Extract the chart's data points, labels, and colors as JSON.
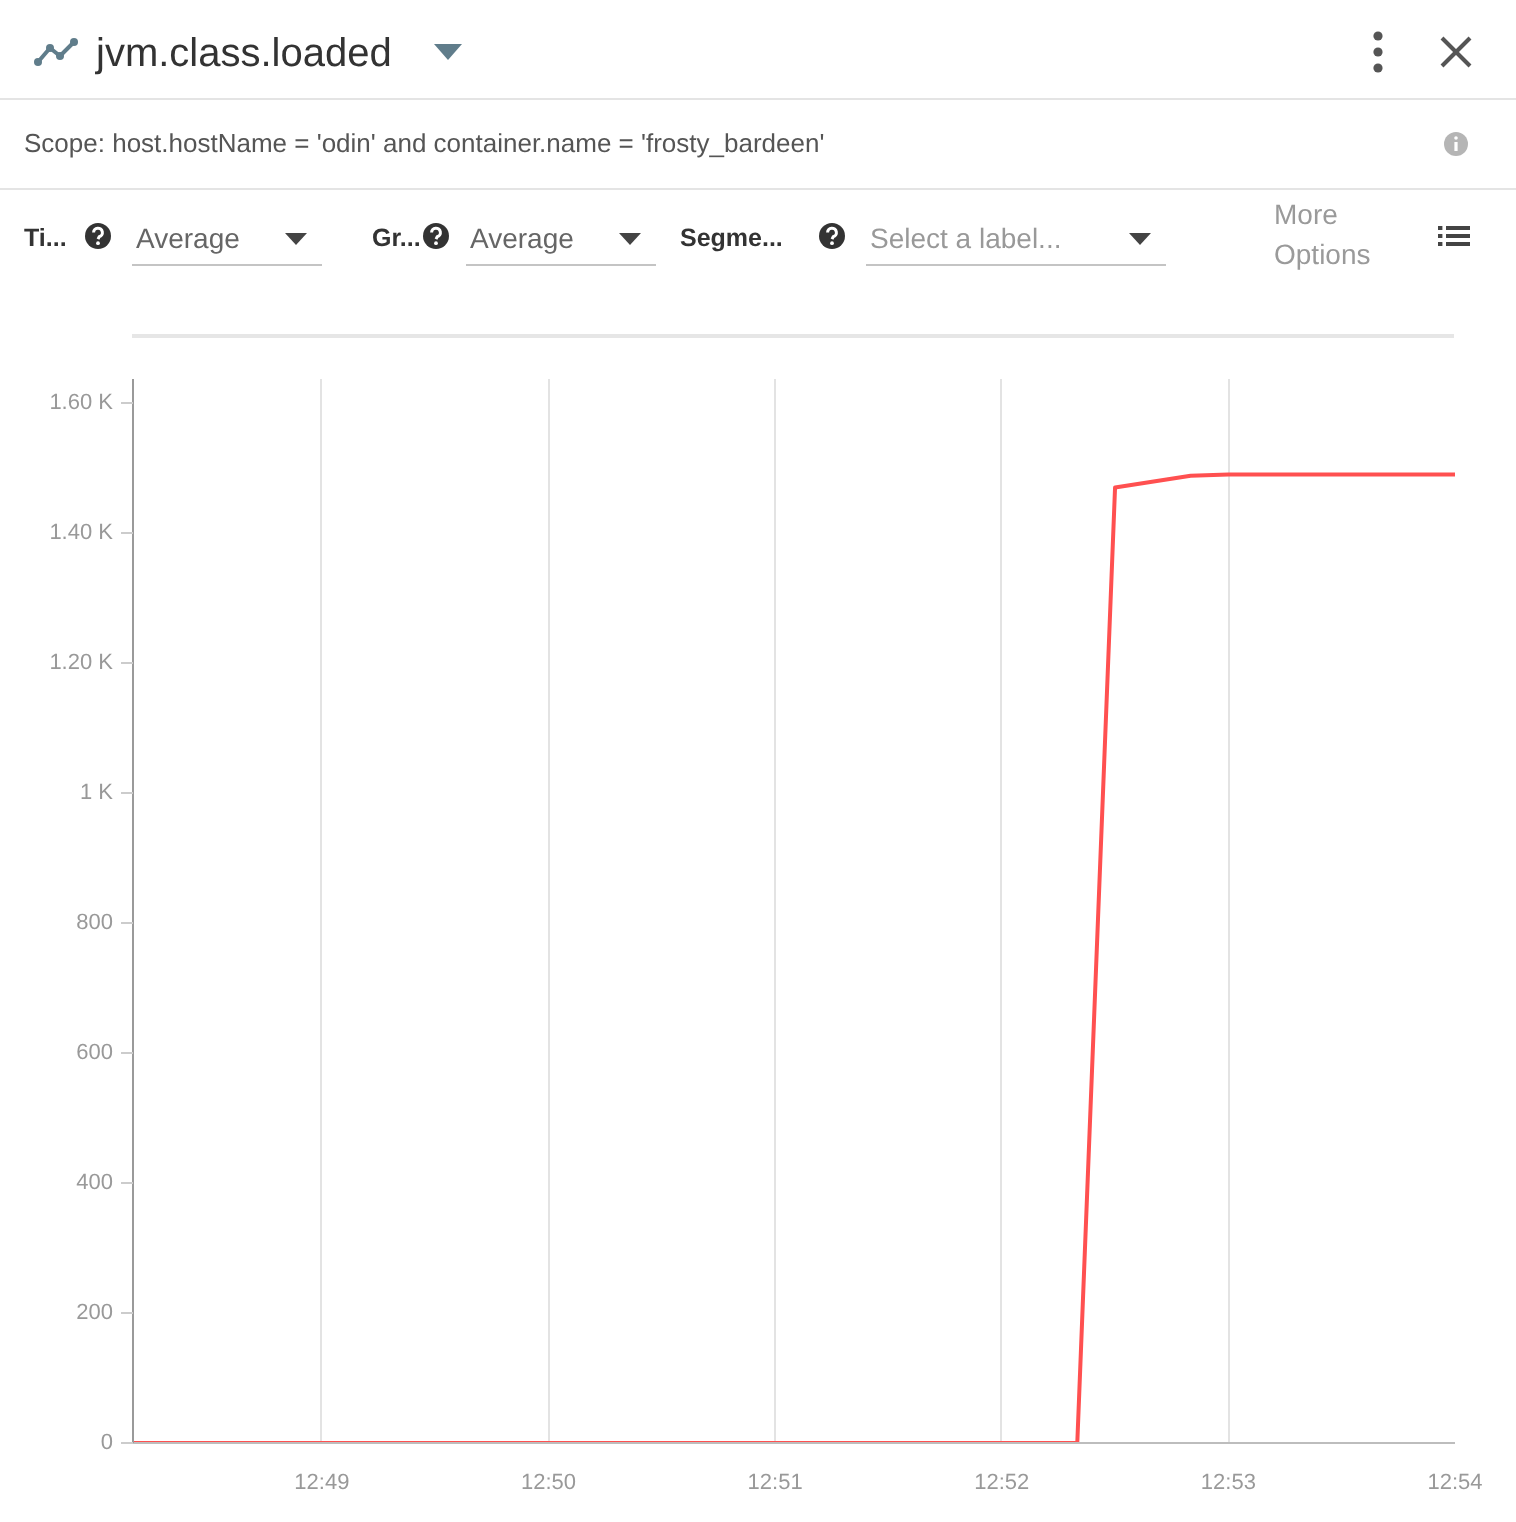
{
  "chart_data": {
    "type": "line",
    "title": "jvm.class.loaded",
    "subtitle": "Scope: host.hostName = 'odin' and container.name = 'frosty_bardeen'",
    "annotations": [
      "Ti...",
      "Average",
      "Gr...",
      "Average",
      "Segme...",
      "Select a label...",
      "More Options"
    ],
    "x": [
      12.802778,
      12.872222,
      12.875,
      12.880556,
      12.883333,
      12.9
    ],
    "series": [
      {
        "color": "#ff5050",
        "values": [
          0,
          0,
          1470,
          1488,
          1490,
          1490
        ]
      }
    ],
    "xlim": [
      12.802778,
      12.9
    ],
    "ylim": [
      0,
      1637
    ],
    "xticks": [
      {
        "value": 12.816667,
        "label": "12:49"
      },
      {
        "value": 12.833333,
        "label": "12:50"
      },
      {
        "value": 12.85,
        "label": "12:51"
      },
      {
        "value": 12.866667,
        "label": "12:52"
      },
      {
        "value": 12.883333,
        "label": "12:53"
      },
      {
        "value": 12.9,
        "label": "12:54"
      }
    ],
    "yticks": [
      0,
      200,
      400,
      600,
      800,
      {
        "value": 1000,
        "label": "1 K"
      },
      {
        "value": 1200,
        "label": "1.20 K"
      },
      {
        "value": 1400,
        "label": "1.40 K"
      },
      {
        "value": 1600,
        "label": "1.60 K"
      }
    ],
    "grid": "x",
    "line_style": "solid"
  }
}
